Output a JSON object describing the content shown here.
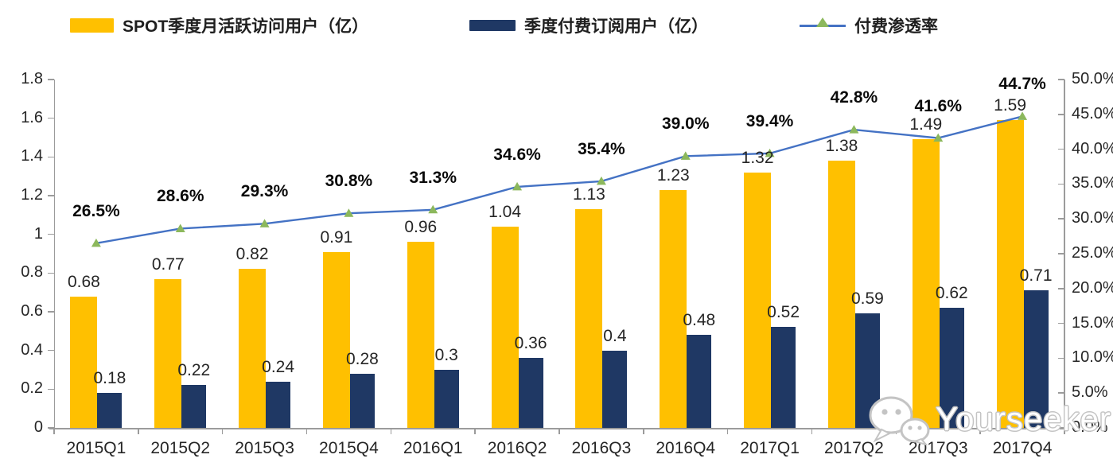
{
  "legend": [
    {
      "label": "SPOT季度月活跃访问用户（亿）",
      "type": "bar-swatch",
      "swatch_color": "#FFC000"
    },
    {
      "label": "季度付费订阅用户（亿）",
      "type": "bar-swatch",
      "swatch_color": "#1F3864"
    },
    {
      "label": "付费渗透率",
      "type": "line-marker",
      "line_color": "#4472C4",
      "marker_color": "#8CB85C"
    }
  ],
  "chart_data": {
    "type": "bar+line combo",
    "categories": [
      "2015Q1",
      "2015Q2",
      "2015Q3",
      "2015Q4",
      "2016Q1",
      "2016Q2",
      "2016Q3",
      "2016Q4",
      "2017Q1",
      "2017Q2",
      "2017Q3",
      "2017Q4"
    ],
    "series": [
      {
        "name": "SPOT季度月活跃访问用户（亿）",
        "type": "bar",
        "axis": "left",
        "color": "#FFC000",
        "values": [
          0.68,
          0.77,
          0.82,
          0.91,
          0.96,
          1.04,
          1.13,
          1.23,
          1.32,
          1.38,
          1.49,
          1.59
        ],
        "labels": [
          "0.68",
          "0.77",
          "0.82",
          "0.91",
          "0.96",
          "1.04",
          "1.13",
          "1.23",
          "1.32",
          "1.38",
          "1.49",
          "1.59"
        ]
      },
      {
        "name": "季度付费订阅用户（亿）",
        "type": "bar",
        "axis": "left",
        "color": "#1F3864",
        "values": [
          0.18,
          0.22,
          0.24,
          0.28,
          0.3,
          0.36,
          0.4,
          0.48,
          0.52,
          0.59,
          0.62,
          0.71
        ],
        "labels": [
          "0.18",
          "0.22",
          "0.24",
          "0.28",
          "0.3",
          "0.36",
          "0.4",
          "0.48",
          "0.52",
          "0.59",
          "0.62",
          "0.71"
        ]
      },
      {
        "name": "付费渗透率",
        "type": "line",
        "axis": "right",
        "color": "#4472C4",
        "marker": "triangle",
        "marker_color": "#8CB85C",
        "values": [
          26.5,
          28.6,
          29.3,
          30.8,
          31.3,
          34.6,
          35.4,
          39.0,
          39.4,
          42.8,
          41.6,
          44.7
        ],
        "labels": [
          "26.5%",
          "28.6%",
          "29.3%",
          "30.8%",
          "31.3%",
          "34.6%",
          "35.4%",
          "39.0%",
          "39.4%",
          "42.8%",
          "41.6%",
          "44.7%"
        ]
      }
    ],
    "left_axis": {
      "min": 0,
      "max": 1.8,
      "tick_labels": [
        "0",
        "0.2",
        "0.4",
        "0.6",
        "0.8",
        "1",
        "1.2",
        "1.4",
        "1.6",
        "1.8"
      ]
    },
    "right_axis": {
      "min": 0,
      "max": 50,
      "tick_labels": [
        "0.0%",
        "5.0%",
        "10.0%",
        "15.0%",
        "20.0%",
        "25.0%",
        "30.0%",
        "35.0%",
        "40.0%",
        "45.0%",
        "50.0%"
      ]
    },
    "grid": false,
    "legend_position": "top"
  },
  "watermark": {
    "text": "Yourseeker",
    "icon": "wechat-icon"
  }
}
